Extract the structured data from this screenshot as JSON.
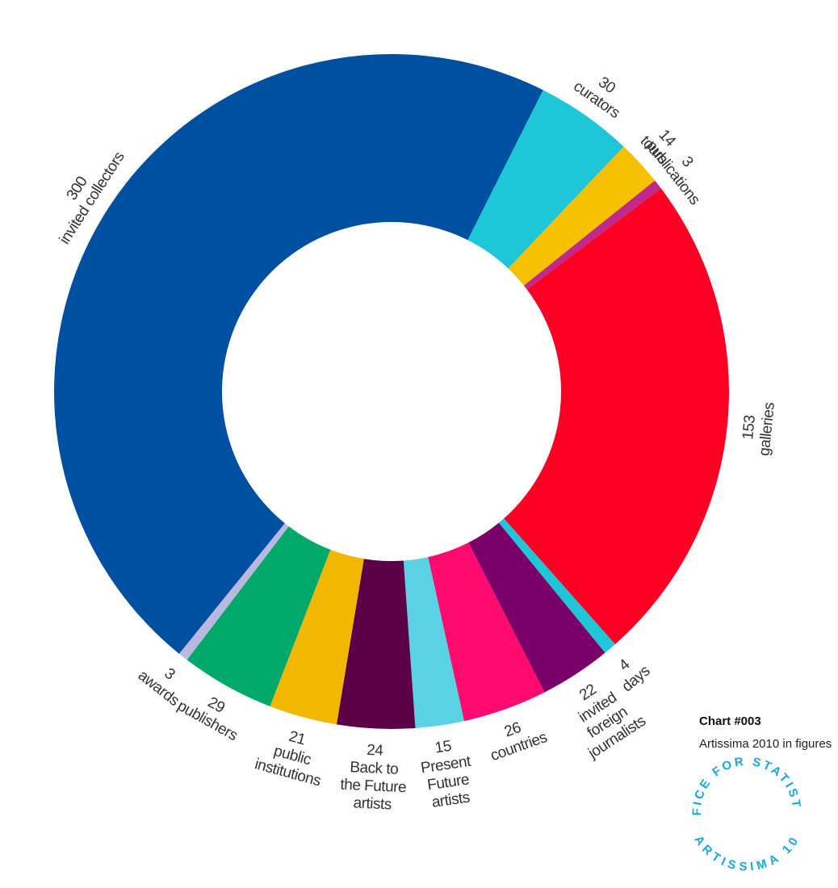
{
  "chart_data": {
    "type": "donut",
    "categories": [
      "invited collectors",
      "curators",
      "tours",
      "publications",
      "galleries",
      "days",
      "invited\nforeign\njournalists",
      "countries",
      "Present\nFuture\nartists",
      "Back to\nthe Future\nartists",
      "public\ninstitutions",
      "publishers",
      "awards"
    ],
    "values": [
      300,
      30,
      14,
      3,
      153,
      4,
      22,
      26,
      15,
      24,
      21,
      29,
      3
    ],
    "colors": [
      "#0050a2",
      "#1ec6d8",
      "#f5c000",
      "#c0288c",
      "#ff0025",
      "#1ec6d8",
      "#7a006a",
      "#ff0a6e",
      "#5ad2e4",
      "#5c0048",
      "#f2b800",
      "#00a86a",
      "#b8b8e0"
    ]
  },
  "footer": {
    "chart_number": "Chart #003",
    "subtitle": "Artissima 2010 in figures",
    "logo_top": "OFFICE FOR STATISTICS",
    "logo_bottom": "ARTISSIMA 10"
  }
}
